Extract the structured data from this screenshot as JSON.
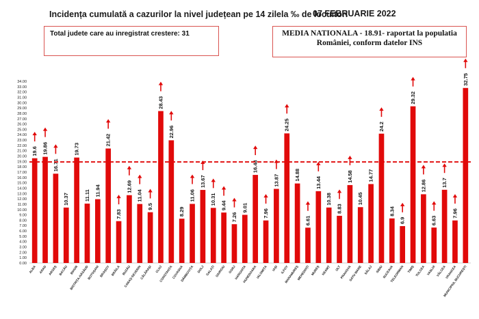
{
  "header": {
    "title": "Incidența cumulată a cazurilor la nivel județean pe 14 zilela ‰ de locuitori",
    "date": "07 FEBRUARIE 2022"
  },
  "info_left": "Total judete care au inregistrat crestere: 31",
  "info_right": {
    "line1": "MEDIA NATIONALA - 18.91-  raportat la populatia",
    "line2": "României, conform datelor INS"
  },
  "chart_data": {
    "type": "bar",
    "title": "Incidența cumulată a cazurilor la nivel județean pe 14 zilela ‰ de locuitori",
    "categories": [
      "ALBA",
      "ARAD",
      "ARGEȘ",
      "BACĂU",
      "BIHOR",
      "BISTRIȚA-NĂSĂUD",
      "BOTOȘANI",
      "BRAȘOV",
      "BRĂILA",
      "BUZĂU",
      "CARAȘ-SEVERIN",
      "CĂLĂRAȘI",
      "CLUJ",
      "CONSTANȚA",
      "COVASNA",
      "DÂMBOVIȚA",
      "DOLJ",
      "GALAȚI",
      "GIURGIU",
      "GORJ",
      "HARGHITA",
      "HUNEDOARA",
      "IALOMIȚA",
      "IAȘI",
      "ILFOV",
      "MARAMUREȘ",
      "MEHEDINȚI",
      "MUREȘ",
      "NEAMȚ",
      "OLT",
      "PRAHOVA",
      "SATU MARE",
      "SĂLAJ",
      "SIBIU",
      "SUCEAVA",
      "TELEORMAN",
      "TIMIȘ",
      "TULCEA",
      "VASLUI",
      "VÂLCEA",
      "VRANCEA",
      "MUNICIPIUL BUCUREȘTI"
    ],
    "values": [
      19.6,
      19.86,
      16.71,
      10.37,
      19.73,
      11.11,
      11.94,
      21.42,
      7.83,
      12.69,
      11.04,
      9.5,
      28.43,
      22.96,
      8.29,
      11.06,
      13.67,
      10.31,
      9.44,
      7.26,
      9.01,
      16.48,
      7.96,
      13.87,
      24.25,
      14.88,
      6.61,
      13.44,
      10.38,
      8.83,
      14.58,
      10.45,
      14.77,
      24.2,
      8.34,
      6.9,
      29.32,
      12.86,
      6.63,
      13.7,
      7.96,
      32.75
    ],
    "value_labels": [
      "19.6",
      "19.86",
      "16.71",
      "10.37",
      "19.73",
      "11.11",
      "11.94",
      "21.42",
      "7.83",
      "12.69",
      "11.04",
      "9.5",
      "28.43",
      "22.96",
      "8.29",
      "11.06",
      "13.67",
      "10.31",
      "9.44",
      "7.26",
      "9.01",
      "16.48",
      "7.96",
      "13.87",
      "24.25",
      "14.88",
      "6.61",
      "13.44",
      "10.38",
      "8.83",
      "14.58",
      "10.45",
      "14.77",
      "24.2",
      "8.34",
      "6.9",
      "29.32",
      "12.86",
      "6.63",
      "13.7",
      "7.96",
      "32.75"
    ],
    "increase": [
      true,
      true,
      true,
      false,
      false,
      false,
      false,
      true,
      true,
      true,
      true,
      true,
      true,
      true,
      false,
      true,
      true,
      true,
      true,
      true,
      false,
      true,
      true,
      true,
      true,
      false,
      true,
      true,
      false,
      true,
      true,
      false,
      false,
      true,
      false,
      true,
      true,
      true,
      true,
      true,
      true,
      true
    ],
    "national_average": 18.91,
    "ylim": [
      0,
      34
    ],
    "ytick_step": 1,
    "bar_color": "#e10a0a",
    "arrow_color": "#e10a0a",
    "average_line_color": "#e10a0a"
  }
}
